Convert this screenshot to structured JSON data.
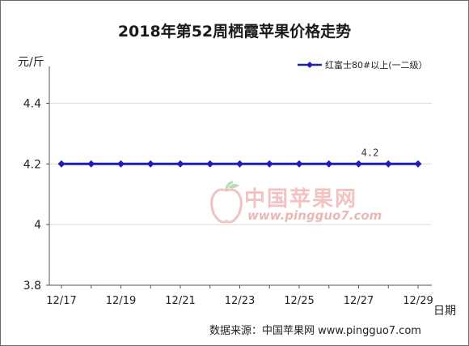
{
  "chart_data": {
    "type": "line",
    "title": "2018年第52周栖霞苹果价格走势",
    "ylabel": "元/斤",
    "xlabel": "日期",
    "ylim": [
      3.8,
      4.5
    ],
    "yticks": [
      3.8,
      4,
      4.2,
      4.4
    ],
    "ytick_labels": [
      "3.8",
      "4",
      "4.2",
      "4.4"
    ],
    "x": [
      "12/17",
      "12/18",
      "12/19",
      "12/20",
      "12/21",
      "12/22",
      "12/23",
      "12/24",
      "12/25",
      "12/26",
      "12/27",
      "12/28",
      "12/29"
    ],
    "xtick_labels": [
      "12/17",
      "12/19",
      "12/21",
      "12/23",
      "12/25",
      "12/27",
      "12/29"
    ],
    "series": [
      {
        "name": "红富士80#以上(一二级）",
        "color": "#1f1fb4",
        "values": [
          4.2,
          4.2,
          4.2,
          4.2,
          4.2,
          4.2,
          4.2,
          4.2,
          4.2,
          4.2,
          4.2,
          4.2,
          4.2
        ]
      }
    ],
    "annotations": [
      {
        "x": "12/27",
        "text": "4.2"
      }
    ],
    "grid": "horizontal",
    "legend": "top-right"
  },
  "watermark": {
    "name": "中国苹果网",
    "url": "www.pingguo7.com"
  },
  "source": "数据来源：中国苹果网 www.pingguo7.com"
}
